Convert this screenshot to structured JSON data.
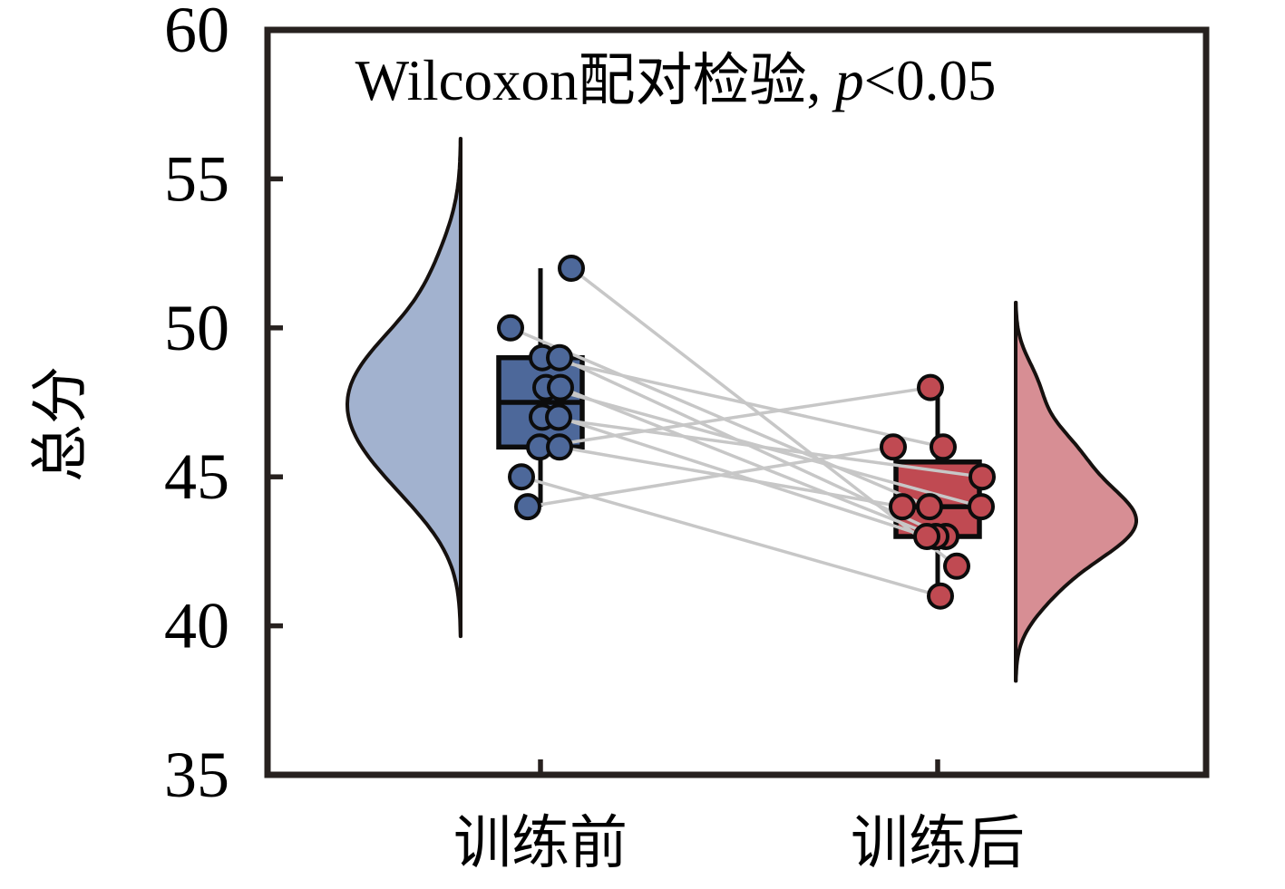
{
  "chart_data": {
    "type": "raincloud-paired",
    "title": {
      "prefix": "Wilcoxon配对检验, ",
      "italic": "p",
      "suffix": "<0.05"
    },
    "ylabel": "总分",
    "ylim": [
      35,
      60
    ],
    "yticks": [
      35,
      40,
      45,
      50,
      55,
      60
    ],
    "categories": [
      "训练前",
      "训练后"
    ],
    "legend": "none",
    "grid": false,
    "series": [
      {
        "name": "训练前",
        "color": "#4d689a",
        "violin_color": "#a2b2cf",
        "violin_bandwidth": 1.45,
        "values": [
          52,
          50,
          49,
          49,
          48,
          48,
          47,
          47,
          46,
          46,
          45,
          44
        ],
        "box": {
          "min": 44,
          "q1": 46,
          "median": 47.5,
          "q3": 49,
          "max": 52
        }
      },
      {
        "name": "训练后",
        "color": "#c04a52",
        "violin_color": "#d78e94",
        "violin_bandwidth": 0.95,
        "values": [
          48,
          46,
          46,
          45,
          44,
          44,
          44,
          43,
          43,
          43,
          42,
          41
        ],
        "box": {
          "min": 41,
          "q1": 43,
          "median": 44,
          "q3": 45.5,
          "max": 48
        }
      }
    ],
    "pairs": [
      {
        "pre": 52,
        "pre_dx": 34,
        "post": 42,
        "post_dx": 21
      },
      {
        "pre": 50,
        "pre_dx": -33,
        "post": 44,
        "post_dx": -9
      },
      {
        "pre": 49,
        "pre_dx": 2,
        "post": 46,
        "post_dx": 6
      },
      {
        "pre": 49,
        "pre_dx": 21,
        "post": 43,
        "post_dx": 9
      },
      {
        "pre": 48,
        "pre_dx": 6,
        "post": 44,
        "post_dx": 48
      },
      {
        "pre": 48,
        "pre_dx": 22,
        "post": 43,
        "post_dx": -2
      },
      {
        "pre": 47,
        "pre_dx": 2,
        "post": 45,
        "post_dx": 49
      },
      {
        "pre": 47,
        "pre_dx": 20,
        "post": 43,
        "post_dx": -12
      },
      {
        "pre": 46,
        "pre_dx": -1,
        "post": 48,
        "post_dx": -8
      },
      {
        "pre": 46,
        "pre_dx": 21,
        "post": 44,
        "post_dx": -39
      },
      {
        "pre": 45,
        "pre_dx": -21,
        "post": 41,
        "post_dx": 3
      },
      {
        "pre": 44,
        "pre_dx": -14,
        "post": 46,
        "post_dx": -49
      }
    ],
    "pair_line_color": "#c7c7c7",
    "frame_color": "#27211f",
    "outline_color": "#0c0c0c"
  }
}
